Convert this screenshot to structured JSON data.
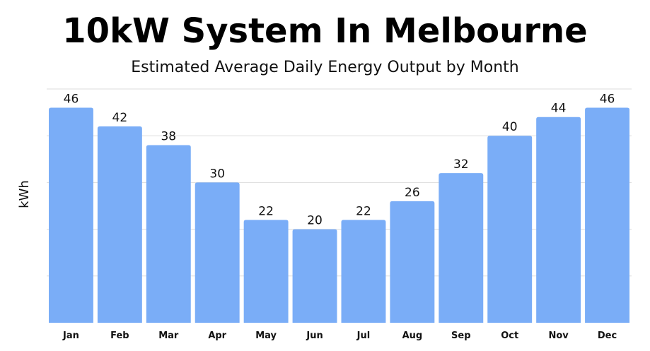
{
  "chart_data": {
    "type": "bar",
    "title": "10kW System In Melbourne",
    "subtitle": "Estimated Average Daily Energy Output by Month",
    "xlabel": "",
    "ylabel": "kWh",
    "categories": [
      "Jan",
      "Feb",
      "Mar",
      "Apr",
      "May",
      "Jun",
      "Jul",
      "Aug",
      "Sep",
      "Oct",
      "Nov",
      "Dec"
    ],
    "values": [
      46,
      42,
      38,
      30,
      22,
      20,
      22,
      26,
      32,
      40,
      44,
      46
    ],
    "data_labels": [
      "46",
      "42",
      "38",
      "30",
      "22",
      "20",
      "22",
      "26",
      "32",
      "40",
      "44",
      "46"
    ],
    "ylim": [
      0,
      50
    ],
    "grid": true,
    "legend": "none",
    "colors": {
      "bar": "#7aadf7",
      "grid": "#dddddd",
      "text": "#111111"
    }
  }
}
